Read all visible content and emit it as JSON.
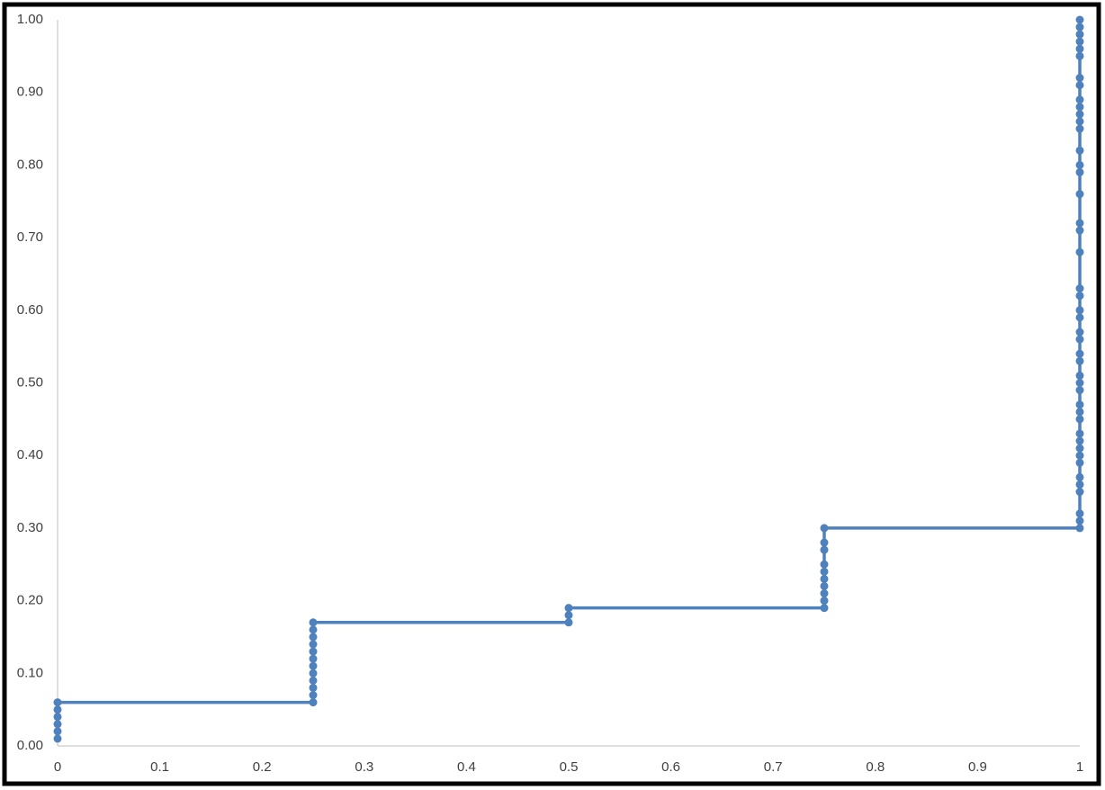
{
  "chart_data": {
    "type": "line",
    "x": [
      0,
      0,
      0,
      0,
      0,
      0,
      0.25,
      0.25,
      0.25,
      0.25,
      0.25,
      0.25,
      0.25,
      0.25,
      0.25,
      0.25,
      0.25,
      0.25,
      0.5,
      0.5,
      0.5,
      0.75,
      0.75,
      0.75,
      0.75,
      0.75,
      0.75,
      0.75,
      0.75,
      0.75,
      0.75,
      1,
      1,
      1,
      1,
      1,
      1,
      1,
      1,
      1,
      1,
      1,
      1,
      1,
      1,
      1,
      1,
      1,
      1,
      1,
      1,
      1,
      1,
      1,
      1,
      1,
      1,
      1,
      1,
      1,
      1,
      1,
      1,
      1,
      1,
      1,
      1,
      1,
      1,
      1,
      1,
      1,
      1,
      1,
      1,
      1
    ],
    "values": [
      0.01,
      0.02,
      0.03,
      0.04,
      0.05,
      0.06,
      0.06,
      0.07,
      0.08,
      0.09,
      0.1,
      0.11,
      0.12,
      0.13,
      0.14,
      0.15,
      0.16,
      0.17,
      0.17,
      0.18,
      0.19,
      0.19,
      0.2,
      0.21,
      0.22,
      0.23,
      0.24,
      0.25,
      0.27,
      0.28,
      0.3,
      0.3,
      0.31,
      0.32,
      0.35,
      0.36,
      0.37,
      0.39,
      0.4,
      0.41,
      0.42,
      0.43,
      0.45,
      0.46,
      0.47,
      0.49,
      0.5,
      0.51,
      0.53,
      0.54,
      0.56,
      0.57,
      0.59,
      0.6,
      0.62,
      0.63,
      0.68,
      0.71,
      0.72,
      0.76,
      0.79,
      0.8,
      0.82,
      0.85,
      0.86,
      0.87,
      0.88,
      0.89,
      0.91,
      0.92,
      0.95,
      0.96,
      0.97,
      0.98,
      0.99,
      1.0
    ],
    "color": "#4f81bd",
    "xlim": [
      0,
      1
    ],
    "xticks": [
      0,
      0.1,
      0.2,
      0.3,
      0.4,
      0.5,
      0.6,
      0.7,
      0.8,
      0.9,
      1
    ],
    "ylim": [
      0,
      1
    ],
    "yticks": [
      {
        "value": 0,
        "label": "0.00"
      },
      {
        "value": 0.1,
        "label": "0.10"
      },
      {
        "value": 0.2,
        "label": "0.20"
      },
      {
        "value": 0.3,
        "label": "0.30"
      },
      {
        "value": 0.4,
        "label": "0.40"
      },
      {
        "value": 0.5,
        "label": "0.50"
      },
      {
        "value": 0.6,
        "label": "0.60"
      },
      {
        "value": 0.7,
        "label": "0.70"
      },
      {
        "value": 0.8,
        "label": "0.80"
      },
      {
        "value": 0.9,
        "label": "0.90"
      },
      {
        "value": 1,
        "label": "1.00"
      }
    ],
    "grid": false
  }
}
